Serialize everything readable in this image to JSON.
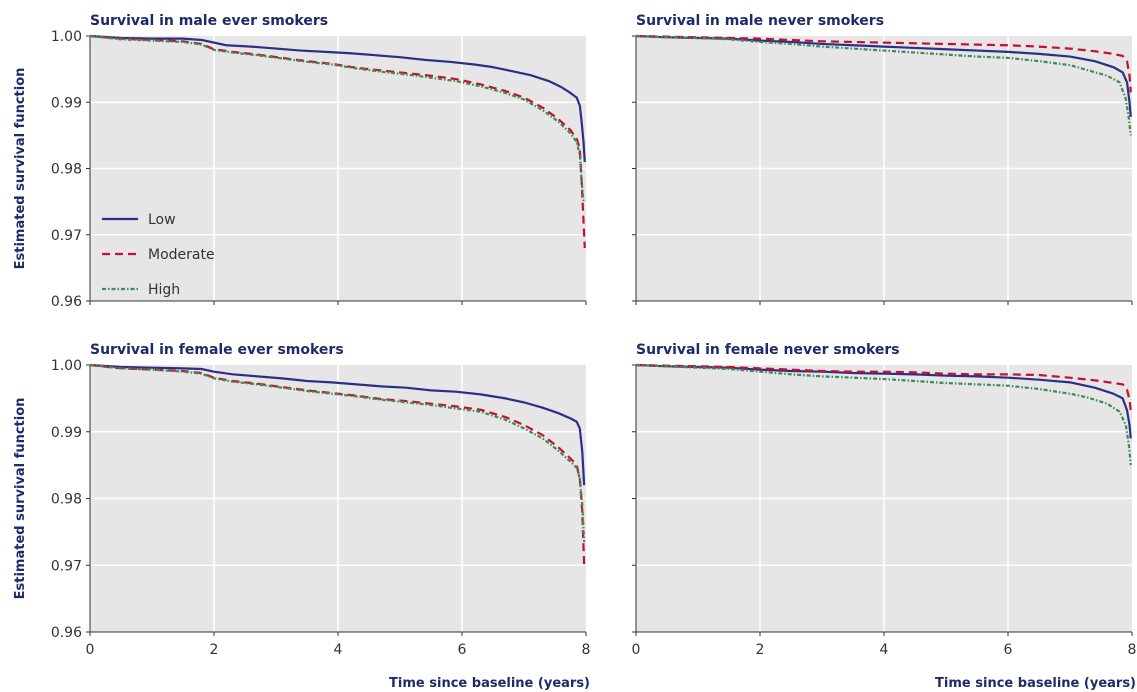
{
  "chart_data": [
    {
      "type": "line",
      "title": "Survival in male ever smokers",
      "xlabel": "",
      "ylabel": "Estimated survival function",
      "xlim": [
        0,
        8
      ],
      "ylim": [
        0.96,
        1.0
      ],
      "xticks": [
        "",
        "",
        "",
        "",
        ""
      ],
      "yticks": [
        "1.00",
        "0.99",
        "0.98",
        "0.97",
        "0.96"
      ],
      "grid": true,
      "legend": "lower-left",
      "series": [
        {
          "name": "Low",
          "color": "#2b2f86",
          "dash": "solid",
          "x": [
            0,
            0.5,
            1,
            1.5,
            1.8,
            2,
            2.2,
            2.6,
            3,
            3.4,
            3.8,
            4.2,
            4.6,
            5,
            5.4,
            5.8,
            6.2,
            6.5,
            6.8,
            7.1,
            7.4,
            7.6,
            7.75,
            7.85,
            7.9,
            7.93,
            7.96,
            7.98
          ],
          "y": [
            1.0,
            0.9997,
            0.9996,
            0.9996,
            0.9994,
            0.999,
            0.9986,
            0.9984,
            0.9981,
            0.9978,
            0.9976,
            0.9974,
            0.9971,
            0.9968,
            0.9964,
            0.9961,
            0.9957,
            0.9953,
            0.9947,
            0.9941,
            0.9932,
            0.9923,
            0.9914,
            0.9907,
            0.9895,
            0.987,
            0.984,
            0.981
          ]
        },
        {
          "name": "Moderate",
          "color": "#c8102e",
          "dash": "dashed",
          "x": [
            0,
            0.5,
            1,
            1.5,
            1.8,
            2,
            2.3,
            2.7,
            3.1,
            3.5,
            3.9,
            4.3,
            4.7,
            5.1,
            5.5,
            5.9,
            6.3,
            6.7,
            7.0,
            7.3,
            7.55,
            7.75,
            7.85,
            7.9,
            7.93,
            7.96,
            7.98
          ],
          "y": [
            1.0,
            0.9996,
            0.9994,
            0.9992,
            0.9988,
            0.998,
            0.9976,
            0.9972,
            0.9967,
            0.9962,
            0.9958,
            0.9952,
            0.9948,
            0.9944,
            0.994,
            0.9935,
            0.9927,
            0.9917,
            0.9907,
            0.9892,
            0.9875,
            0.9858,
            0.9845,
            0.983,
            0.978,
            0.972,
            0.968
          ]
        },
        {
          "name": "High",
          "color": "#3d8b5a",
          "dash": "dotdash",
          "x": [
            0,
            0.5,
            1,
            1.5,
            1.8,
            2,
            2.3,
            2.7,
            3.1,
            3.5,
            3.9,
            4.3,
            4.7,
            5.1,
            5.5,
            5.9,
            6.3,
            6.7,
            7.0,
            7.3,
            7.55,
            7.75,
            7.85,
            7.9,
            7.93,
            7.96
          ],
          "y": [
            1.0,
            0.9995,
            0.9993,
            0.9991,
            0.9987,
            0.9979,
            0.9975,
            0.9971,
            0.9966,
            0.9961,
            0.9957,
            0.9951,
            0.9946,
            0.9942,
            0.9937,
            0.9932,
            0.9924,
            0.9914,
            0.9904,
            0.9888,
            0.9871,
            0.9853,
            0.984,
            0.982,
            0.978,
            0.975
          ]
        }
      ]
    },
    {
      "type": "line",
      "title": "Survival in male never smokers",
      "xlabel": "",
      "ylabel": "",
      "xlim": [
        0,
        8
      ],
      "ylim": [
        0.96,
        1.0
      ],
      "xticks": [
        "",
        "",
        "",
        "",
        ""
      ],
      "yticks": [
        "",
        "",
        "",
        "",
        ""
      ],
      "grid": true,
      "legend": "",
      "series": [
        {
          "name": "Low",
          "color": "#2b2f86",
          "dash": "solid",
          "x": [
            0,
            0.5,
            1,
            1.5,
            2,
            2.5,
            3,
            3.5,
            4,
            4.5,
            5,
            5.5,
            6,
            6.5,
            7,
            7.4,
            7.7,
            7.85,
            7.92,
            7.96,
            7.98
          ],
          "y": [
            1.0,
            0.9998,
            0.9997,
            0.9996,
            0.9993,
            0.9991,
            0.9988,
            0.9986,
            0.9984,
            0.9982,
            0.998,
            0.9978,
            0.9976,
            0.9973,
            0.9969,
            0.9962,
            0.9953,
            0.9945,
            0.993,
            0.99,
            0.9878
          ]
        },
        {
          "name": "Moderate",
          "color": "#c8102e",
          "dash": "dashed",
          "x": [
            0,
            0.5,
            1,
            1.5,
            2,
            2.5,
            3,
            3.5,
            4,
            4.5,
            5,
            5.5,
            6,
            6.5,
            7,
            7.4,
            7.7,
            7.85,
            7.92,
            7.96,
            7.98
          ],
          "y": [
            1.0,
            0.9999,
            0.9998,
            0.9997,
            0.9996,
            0.9994,
            0.9992,
            0.9991,
            0.999,
            0.9989,
            0.9988,
            0.9987,
            0.9986,
            0.9984,
            0.9981,
            0.9977,
            0.9973,
            0.997,
            0.9962,
            0.994,
            0.9915
          ]
        },
        {
          "name": "High",
          "color": "#3d8b5a",
          "dash": "dotdash",
          "x": [
            0,
            0.5,
            1,
            1.5,
            2,
            2.5,
            3,
            3.5,
            4,
            4.5,
            5,
            5.5,
            6,
            6.5,
            7,
            7.3,
            7.6,
            7.8,
            7.9,
            7.95,
            7.98
          ],
          "y": [
            1.0,
            0.9998,
            0.9997,
            0.9995,
            0.9991,
            0.9988,
            0.9984,
            0.9981,
            0.9978,
            0.9975,
            0.9972,
            0.9969,
            0.9967,
            0.9962,
            0.9956,
            0.9948,
            0.994,
            0.993,
            0.9905,
            0.9875,
            0.985
          ]
        }
      ]
    },
    {
      "type": "line",
      "title": "Survival in female ever smokers",
      "xlabel": "Time since baseline (years)",
      "ylabel": "Estimated survival function",
      "xlim": [
        0,
        8
      ],
      "ylim": [
        0.96,
        1.0
      ],
      "xticks": [
        "0",
        "2",
        "4",
        "6",
        "8"
      ],
      "yticks": [
        "1.00",
        "0.99",
        "0.98",
        "0.97",
        "0.96"
      ],
      "grid": true,
      "legend": "",
      "series": [
        {
          "name": "Low",
          "color": "#2b2f86",
          "dash": "solid",
          "x": [
            0,
            0.5,
            1,
            1.5,
            1.8,
            2,
            2.3,
            2.7,
            3.1,
            3.5,
            3.9,
            4.3,
            4.7,
            5.1,
            5.5,
            5.9,
            6.3,
            6.7,
            7.0,
            7.3,
            7.55,
            7.75,
            7.85,
            7.9,
            7.94,
            7.97
          ],
          "y": [
            1.0,
            0.9997,
            0.9996,
            0.9995,
            0.9994,
            0.999,
            0.9986,
            0.9983,
            0.998,
            0.9976,
            0.9974,
            0.9971,
            0.9968,
            0.9966,
            0.9962,
            0.996,
            0.9956,
            0.995,
            0.9944,
            0.9936,
            0.9928,
            0.992,
            0.9915,
            0.9905,
            0.987,
            0.982
          ]
        },
        {
          "name": "Moderate",
          "color": "#c8102e",
          "dash": "dashed",
          "x": [
            0,
            0.5,
            1,
            1.5,
            1.8,
            2,
            2.3,
            2.7,
            3.1,
            3.5,
            3.9,
            4.3,
            4.7,
            5.1,
            5.5,
            5.9,
            6.3,
            6.7,
            7.0,
            7.3,
            7.55,
            7.75,
            7.85,
            7.9,
            7.94,
            7.97
          ],
          "y": [
            1.0,
            0.9995,
            0.9993,
            0.9991,
            0.9988,
            0.9981,
            0.9976,
            0.9972,
            0.9967,
            0.9962,
            0.9958,
            0.9954,
            0.9949,
            0.9946,
            0.9942,
            0.9938,
            0.9933,
            0.9922,
            0.991,
            0.9895,
            0.9877,
            0.986,
            0.985,
            0.983,
            0.978,
            0.97
          ]
        },
        {
          "name": "High",
          "color": "#3d8b5a",
          "dash": "dotdash",
          "x": [
            0,
            0.5,
            1,
            1.5,
            1.8,
            2,
            2.3,
            2.7,
            3.1,
            3.5,
            3.9,
            4.3,
            4.7,
            5.1,
            5.5,
            5.9,
            6.3,
            6.7,
            7.0,
            7.3,
            7.55,
            7.75,
            7.85,
            7.9,
            7.94,
            7.97
          ],
          "y": [
            1.0,
            0.9995,
            0.9993,
            0.999,
            0.9987,
            0.998,
            0.9975,
            0.9971,
            0.9966,
            0.9961,
            0.9957,
            0.9953,
            0.9948,
            0.9944,
            0.994,
            0.9935,
            0.993,
            0.9918,
            0.9905,
            0.989,
            0.9872,
            0.9855,
            0.9846,
            0.983,
            0.979,
            0.9735
          ]
        }
      ]
    },
    {
      "type": "line",
      "title": "Survival in female never smokers",
      "xlabel": "Time since baseline (years)",
      "ylabel": "",
      "xlim": [
        0,
        8
      ],
      "ylim": [
        0.96,
        1.0
      ],
      "xticks": [
        "0",
        "2",
        "4",
        "6",
        "8"
      ],
      "yticks": [
        "",
        "",
        "",
        "",
        ""
      ],
      "grid": true,
      "legend": "",
      "series": [
        {
          "name": "Low",
          "color": "#2b2f86",
          "dash": "solid",
          "x": [
            0,
            0.5,
            1,
            1.5,
            2,
            2.5,
            3,
            3.5,
            4,
            4.5,
            5,
            5.5,
            6,
            6.5,
            7,
            7.4,
            7.7,
            7.85,
            7.92,
            7.96,
            7.98
          ],
          "y": [
            1.0,
            0.9998,
            0.9997,
            0.9996,
            0.9993,
            0.9991,
            0.999,
            0.9988,
            0.9987,
            0.9986,
            0.9984,
            0.9983,
            0.9981,
            0.9978,
            0.9974,
            0.9966,
            0.9957,
            0.995,
            0.9932,
            0.991,
            0.989
          ]
        },
        {
          "name": "Moderate",
          "color": "#c8102e",
          "dash": "dashed",
          "x": [
            0,
            0.5,
            1,
            1.5,
            2,
            2.5,
            3,
            3.5,
            4,
            4.5,
            5,
            5.5,
            6,
            6.5,
            7,
            7.4,
            7.7,
            7.85,
            7.92,
            7.96,
            7.98
          ],
          "y": [
            1.0,
            0.9999,
            0.9998,
            0.9997,
            0.9995,
            0.9993,
            0.9991,
            0.999,
            0.999,
            0.9989,
            0.9987,
            0.9986,
            0.9986,
            0.9985,
            0.9981,
            0.9977,
            0.9973,
            0.9971,
            0.9963,
            0.9948,
            0.9932
          ]
        },
        {
          "name": "High",
          "color": "#3d8b5a",
          "dash": "dotdash",
          "x": [
            0,
            0.5,
            1,
            1.5,
            2,
            2.5,
            3,
            3.5,
            4,
            4.5,
            5,
            5.5,
            6,
            6.5,
            7,
            7.3,
            7.6,
            7.8,
            7.9,
            7.95,
            7.98
          ],
          "y": [
            1.0,
            0.9998,
            0.9996,
            0.9994,
            0.999,
            0.9986,
            0.9983,
            0.9981,
            0.9979,
            0.9976,
            0.9973,
            0.9971,
            0.9969,
            0.9964,
            0.9957,
            0.9951,
            0.9942,
            0.993,
            0.991,
            0.988,
            0.985
          ]
        }
      ]
    }
  ]
}
